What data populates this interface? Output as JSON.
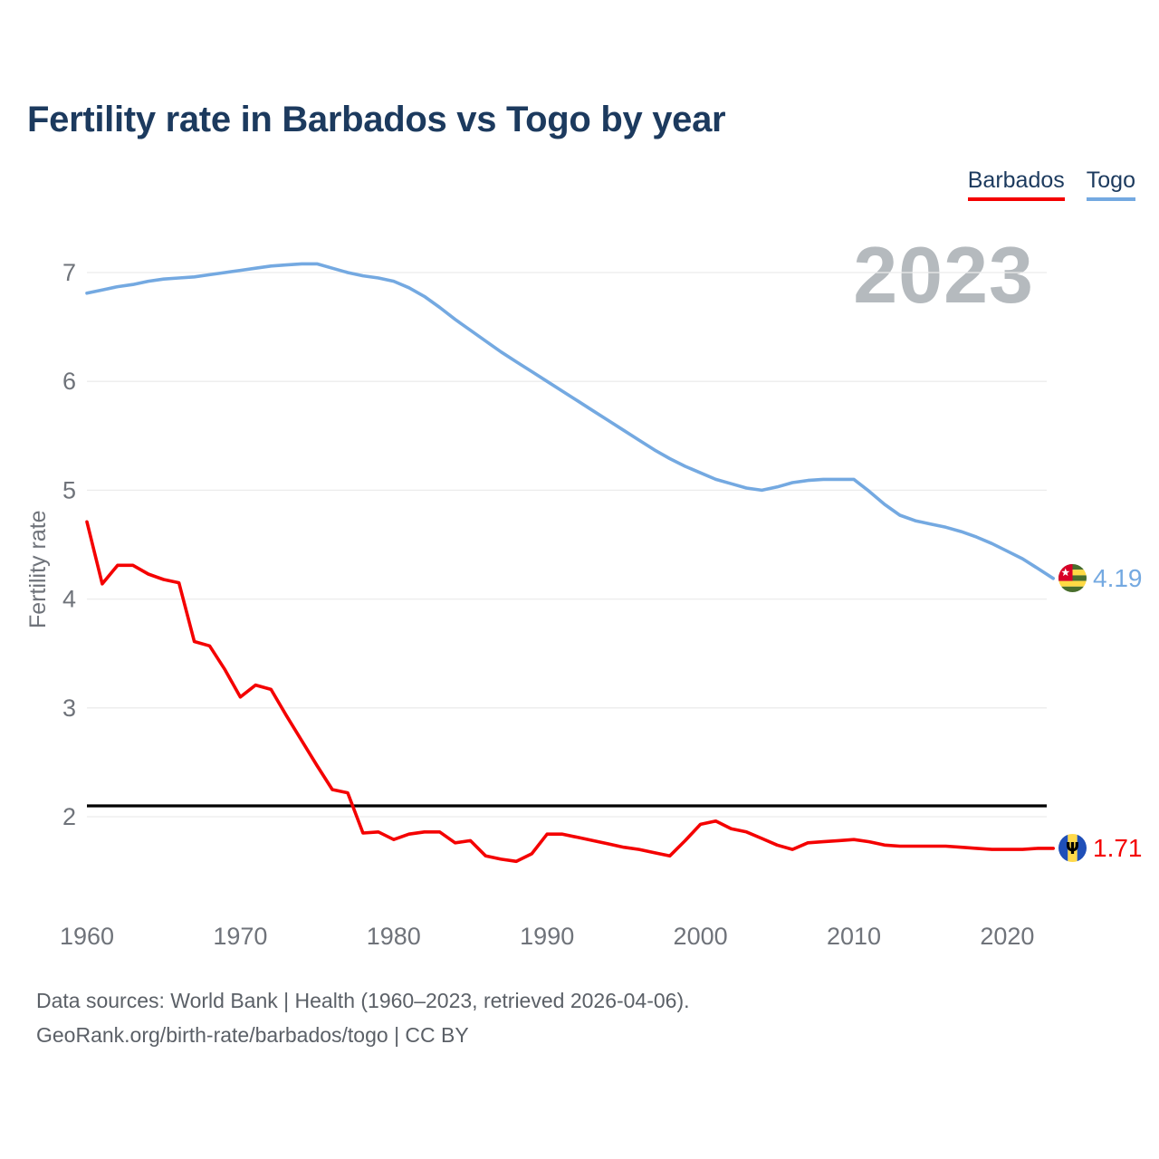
{
  "title": "Fertility rate in Barbados vs Togo by year",
  "watermark": "2023",
  "legend": [
    {
      "label": "Barbados",
      "color": "#f40000"
    },
    {
      "label": "Togo",
      "color": "#74a9e1"
    }
  ],
  "annotations": {
    "togo_value": "4.19",
    "barbados_value": "1.71"
  },
  "footer": {
    "line1": "Data sources: World Bank | Health (1960–2023, retrieved 2026-04-06).",
    "line2": "GeoRank.org/birth-rate/barbados/togo | CC BY"
  },
  "chart_data": {
    "type": "line",
    "title": "Fertility rate in Barbados vs Togo by year",
    "ylabel": "Fertility rate",
    "xlabel": "",
    "grid": true,
    "legend_position": "top-right",
    "ylim": [
      1.45,
      7.45
    ],
    "xlim": [
      1958,
      2027
    ],
    "y_ticks": [
      2,
      3,
      4,
      5,
      6,
      7
    ],
    "x_ticks": [
      1960,
      1970,
      1980,
      1990,
      2000,
      2010,
      2020
    ],
    "reference_line": {
      "value": 2.1,
      "color": "#000000"
    },
    "x": [
      1960,
      1961,
      1962,
      1963,
      1964,
      1965,
      1966,
      1967,
      1968,
      1969,
      1970,
      1971,
      1972,
      1973,
      1974,
      1975,
      1976,
      1977,
      1978,
      1979,
      1980,
      1981,
      1982,
      1983,
      1984,
      1985,
      1986,
      1987,
      1988,
      1989,
      1990,
      1991,
      1992,
      1993,
      1994,
      1995,
      1996,
      1997,
      1998,
      1999,
      2000,
      2001,
      2002,
      2003,
      2004,
      2005,
      2006,
      2007,
      2008,
      2009,
      2010,
      2011,
      2012,
      2013,
      2014,
      2015,
      2016,
      2017,
      2018,
      2019,
      2020,
      2021,
      2022,
      2023
    ],
    "series": [
      {
        "name": "Barbados",
        "color": "#f40000",
        "end_label": "1.71",
        "values": [
          4.71,
          4.14,
          4.31,
          4.31,
          4.23,
          4.18,
          4.15,
          3.61,
          3.57,
          3.35,
          3.1,
          3.21,
          3.17,
          2.93,
          2.7,
          2.47,
          2.25,
          2.22,
          1.85,
          1.86,
          1.79,
          1.84,
          1.86,
          1.86,
          1.76,
          1.78,
          1.64,
          1.61,
          1.59,
          1.66,
          1.84,
          1.84,
          1.81,
          1.78,
          1.75,
          1.72,
          1.7,
          1.67,
          1.64,
          1.78,
          1.93,
          1.96,
          1.89,
          1.86,
          1.8,
          1.74,
          1.7,
          1.76,
          1.77,
          1.78,
          1.79,
          1.77,
          1.74,
          1.73,
          1.73,
          1.73,
          1.73,
          1.72,
          1.71,
          1.7,
          1.7,
          1.7,
          1.71,
          1.71
        ]
      },
      {
        "name": "Togo",
        "color": "#74a9e1",
        "end_label": "4.19",
        "values": [
          6.81,
          6.84,
          6.87,
          6.89,
          6.92,
          6.94,
          6.95,
          6.96,
          6.98,
          7.0,
          7.02,
          7.04,
          7.06,
          7.07,
          7.08,
          7.08,
          7.04,
          7.0,
          6.97,
          6.95,
          6.92,
          6.86,
          6.78,
          6.68,
          6.57,
          6.47,
          6.37,
          6.27,
          6.18,
          6.09,
          6.0,
          5.91,
          5.82,
          5.73,
          5.64,
          5.55,
          5.46,
          5.37,
          5.29,
          5.22,
          5.16,
          5.1,
          5.06,
          5.02,
          5.0,
          5.03,
          5.07,
          5.09,
          5.1,
          5.1,
          5.1,
          4.99,
          4.87,
          4.77,
          4.72,
          4.69,
          4.66,
          4.62,
          4.57,
          4.51,
          4.44,
          4.37,
          4.28,
          4.19
        ]
      }
    ]
  }
}
